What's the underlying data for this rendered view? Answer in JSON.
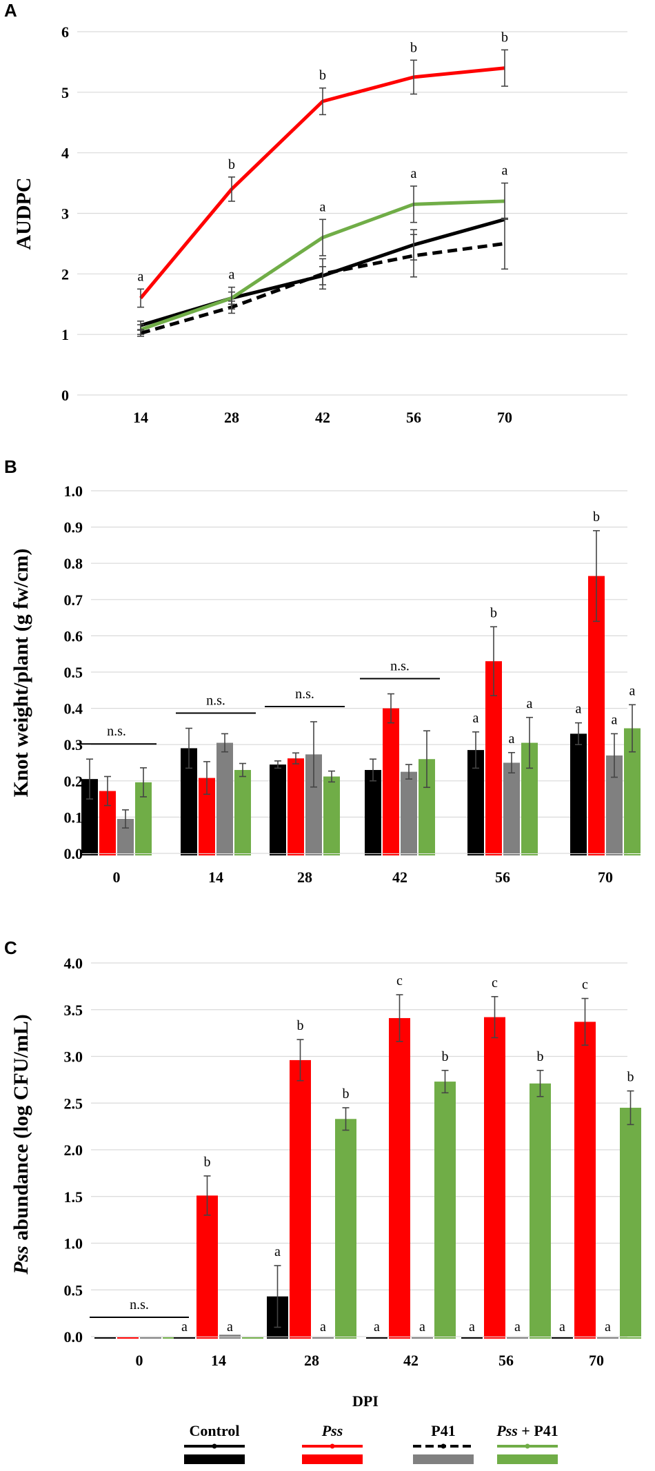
{
  "figure": {
    "x_axis_label": "DPI",
    "legend": [
      {
        "id": "control",
        "label": "Control",
        "line_color": "#000000",
        "bar_color": "#000000",
        "dashed": false
      },
      {
        "id": "pss",
        "label": "Pss",
        "italic": true,
        "line_color": "#ff0000",
        "bar_color": "#ff0000",
        "dashed": false
      },
      {
        "id": "p41",
        "label": "P41",
        "line_color": "#000000",
        "bar_color": "#808080",
        "dashed": true
      },
      {
        "id": "pss_p41",
        "label_italic": "Pss",
        "label_rest": " + P41",
        "line_color": "#70ad47",
        "bar_color": "#70ad47",
        "dashed": false
      }
    ]
  },
  "chart_data": [
    {
      "panel": "A",
      "type": "line",
      "ylabel": "AUDPC",
      "ylim": [
        0,
        6
      ],
      "yticks": [
        "0",
        "1",
        "2",
        "3",
        "4",
        "5",
        "6"
      ],
      "categories": [
        "14",
        "28",
        "42",
        "56",
        "70"
      ],
      "grid": true,
      "series": [
        {
          "name": "Control",
          "color": "#000000",
          "dashed": false,
          "values": [
            1.15,
            1.6,
            1.97,
            2.48,
            2.9
          ],
          "err": [
            0.07,
            0.1,
            0.15,
            0.25,
            0.0
          ],
          "labels": [
            "",
            "",
            "",
            "",
            ""
          ]
        },
        {
          "name": "Pss",
          "color": "#ff0000",
          "dashed": false,
          "values": [
            1.6,
            3.4,
            4.85,
            5.25,
            5.4
          ],
          "err": [
            0.15,
            0.2,
            0.22,
            0.28,
            0.3
          ],
          "labels": [
            "a",
            "b",
            "b",
            "b",
            "b"
          ]
        },
        {
          "name": "P41",
          "color": "#000000",
          "dashed": true,
          "values": [
            1.02,
            1.45,
            2.0,
            2.3,
            2.5
          ],
          "err": [
            0.05,
            0.1,
            0.25,
            0.35,
            0.42
          ],
          "labels": [
            "",
            "",
            "",
            "",
            ""
          ]
        },
        {
          "name": "Pss + P41",
          "color": "#70ad47",
          "dashed": false,
          "values": [
            1.08,
            1.6,
            2.6,
            3.15,
            3.2
          ],
          "err": [
            0.08,
            0.18,
            0.3,
            0.3,
            0.3
          ],
          "labels": [
            "",
            "a",
            "a",
            "a",
            "a"
          ]
        }
      ]
    },
    {
      "panel": "B",
      "type": "bar",
      "ylabel": "Knot weight/plant (g fw/cm)",
      "ylim": [
        0,
        1.0
      ],
      "yticks": [
        "0.0",
        "0.1",
        "0.2",
        "0.3",
        "0.4",
        "0.5",
        "0.6",
        "0.7",
        "0.8",
        "0.9",
        "1.0"
      ],
      "categories": [
        "0",
        "14",
        "28",
        "42",
        "56",
        "70"
      ],
      "grid": true,
      "series": [
        {
          "name": "Control",
          "color": "#000000",
          "values": [
            0.205,
            0.29,
            0.245,
            0.23,
            0.285,
            0.33
          ],
          "err": [
            0.055,
            0.055,
            0.01,
            0.03,
            0.05,
            0.03
          ],
          "labels": [
            "",
            "",
            "",
            "",
            "a",
            "a"
          ]
        },
        {
          "name": "Pss",
          "color": "#ff0000",
          "values": [
            0.172,
            0.208,
            0.262,
            0.4,
            0.53,
            0.765
          ],
          "err": [
            0.04,
            0.045,
            0.015,
            0.04,
            0.095,
            0.125
          ],
          "labels": [
            "",
            "",
            "",
            "",
            "b",
            "b"
          ]
        },
        {
          "name": "P41",
          "color": "#808080",
          "values": [
            0.095,
            0.305,
            0.273,
            0.225,
            0.25,
            0.27
          ],
          "err": [
            0.025,
            0.025,
            0.09,
            0.02,
            0.028,
            0.06
          ],
          "labels": [
            "",
            "",
            "",
            "",
            "a",
            "a"
          ]
        },
        {
          "name": "Pss + P41",
          "color": "#70ad47",
          "values": [
            0.196,
            0.23,
            0.212,
            0.26,
            0.305,
            0.345
          ],
          "err": [
            0.04,
            0.018,
            0.015,
            0.078,
            0.07,
            0.065
          ],
          "labels": [
            "",
            "",
            "",
            "",
            "a",
            "a"
          ]
        }
      ],
      "group_notes": [
        "n.s.",
        "n.s.",
        "n.s.",
        "n.s.",
        "",
        ""
      ]
    },
    {
      "panel": "C",
      "type": "bar",
      "ylabel_italic": "Pss",
      "ylabel_rest": " abundance (log CFU/mL)",
      "ylim": [
        0,
        4.0
      ],
      "yticks": [
        "0.0",
        "0.5",
        "1.0",
        "1.5",
        "2.0",
        "2.5",
        "3.0",
        "3.5",
        "4.0"
      ],
      "categories": [
        "0",
        "14",
        "28",
        "42",
        "56",
        "70"
      ],
      "grid": true,
      "series": [
        {
          "name": "Control",
          "color": "#000000",
          "values": [
            0,
            0,
            0.43,
            0,
            0,
            0
          ],
          "err": [
            0,
            0,
            0.33,
            0,
            0,
            0
          ],
          "labels": [
            "",
            "a",
            "a",
            "a",
            "a",
            "a"
          ]
        },
        {
          "name": "Pss",
          "color": "#ff0000",
          "values": [
            0,
            1.51,
            2.96,
            3.41,
            3.42,
            3.37
          ],
          "err": [
            0,
            0.21,
            0.22,
            0.25,
            0.22,
            0.25
          ],
          "labels": [
            "",
            "b",
            "b",
            "c",
            "c",
            "c"
          ]
        },
        {
          "name": "P41",
          "color": "#808080",
          "values": [
            0,
            0.02,
            0,
            0,
            0,
            0
          ],
          "err": [
            0,
            0,
            0,
            0,
            0,
            0
          ],
          "labels": [
            "",
            "a",
            "a",
            "a",
            "a",
            "a"
          ]
        },
        {
          "name": "Pss + P41",
          "color": "#70ad47",
          "values": [
            0,
            0,
            2.33,
            2.73,
            2.71,
            2.45
          ],
          "err": [
            0,
            0,
            0.12,
            0.12,
            0.14,
            0.18
          ],
          "labels": [
            "",
            "",
            "b",
            "b",
            "b",
            "b"
          ]
        }
      ],
      "group_notes": [
        "n.s.",
        "",
        "",
        "",
        "",
        ""
      ]
    }
  ]
}
